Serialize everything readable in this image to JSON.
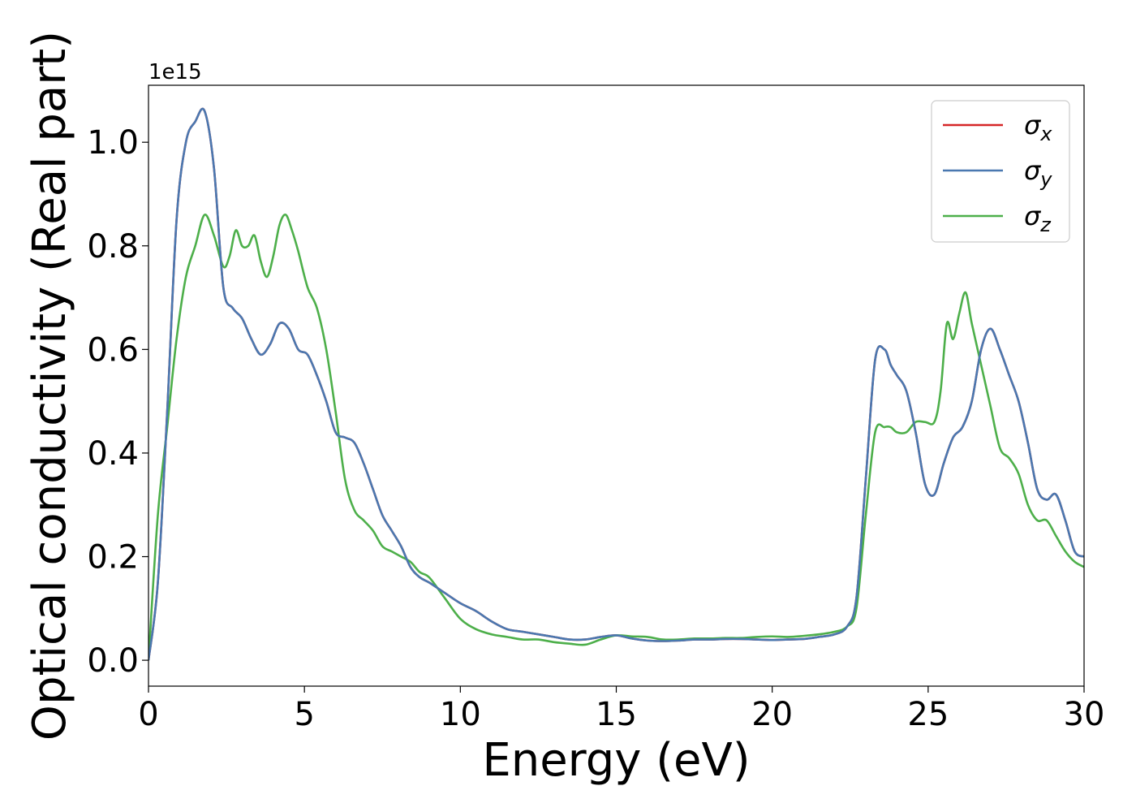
{
  "chart_data": {
    "type": "line",
    "title": "",
    "xlabel": "Energy (eV)",
    "ylabel": "Optical conductivity (Real part)",
    "y_offset_label": "1e15",
    "xlim": [
      0,
      30
    ],
    "ylim": [
      -0.05,
      1.11
    ],
    "y_scale": 1000000000000000.0,
    "x_ticks": [
      0,
      5,
      10,
      15,
      20,
      25,
      30
    ],
    "x_tick_labels": [
      "0",
      "5",
      "10",
      "15",
      "20",
      "25",
      "30"
    ],
    "y_ticks": [
      0.0,
      0.2,
      0.4,
      0.6,
      0.8,
      1.0
    ],
    "y_tick_labels": [
      "0.0",
      "0.2",
      "0.4",
      "0.6",
      "0.8",
      "1.0"
    ],
    "grid": false,
    "legend_position": "top-right",
    "series": [
      {
        "name": "σx",
        "symbol": "σ",
        "subscript": "x",
        "color": "#d62728",
        "x": [
          0,
          0.3,
          0.6,
          0.9,
          1.2,
          1.5,
          1.8,
          2.1,
          2.4,
          2.7,
          3.0,
          3.3,
          3.6,
          3.9,
          4.2,
          4.5,
          4.8,
          5.1,
          5.4,
          5.7,
          6.0,
          6.3,
          6.6,
          6.9,
          7.2,
          7.5,
          7.8,
          8.1,
          8.4,
          8.7,
          9.0,
          9.5,
          10.0,
          10.5,
          11.0,
          11.5,
          12.0,
          12.5,
          13.0,
          13.5,
          14.0,
          14.5,
          15.0,
          15.5,
          16.0,
          16.5,
          17.0,
          17.5,
          18.0,
          18.5,
          19.0,
          19.5,
          20.0,
          20.5,
          21.0,
          21.5,
          22.0,
          22.4,
          22.7,
          23.0,
          23.3,
          23.6,
          23.8,
          24.0,
          24.3,
          24.6,
          24.9,
          25.2,
          25.5,
          25.8,
          26.1,
          26.4,
          26.7,
          27.0,
          27.3,
          27.6,
          27.9,
          28.2,
          28.5,
          28.8,
          29.1,
          29.4,
          29.7,
          30.0
        ],
        "y": [
          0.0,
          0.15,
          0.48,
          0.85,
          1.0,
          1.04,
          1.06,
          0.95,
          0.72,
          0.68,
          0.66,
          0.62,
          0.59,
          0.61,
          0.65,
          0.64,
          0.6,
          0.59,
          0.55,
          0.5,
          0.44,
          0.43,
          0.42,
          0.38,
          0.33,
          0.28,
          0.25,
          0.22,
          0.18,
          0.16,
          0.15,
          0.13,
          0.11,
          0.095,
          0.075,
          0.06,
          0.055,
          0.05,
          0.045,
          0.04,
          0.04,
          0.045,
          0.048,
          0.042,
          0.038,
          0.037,
          0.038,
          0.04,
          0.04,
          0.041,
          0.041,
          0.04,
          0.039,
          0.04,
          0.041,
          0.045,
          0.05,
          0.065,
          0.12,
          0.35,
          0.58,
          0.6,
          0.57,
          0.55,
          0.52,
          0.44,
          0.34,
          0.32,
          0.38,
          0.43,
          0.45,
          0.5,
          0.6,
          0.64,
          0.6,
          0.55,
          0.5,
          0.42,
          0.33,
          0.31,
          0.32,
          0.27,
          0.21,
          0.2
        ]
      },
      {
        "name": "σy",
        "symbol": "σ",
        "subscript": "y",
        "color": "#4a78b0",
        "x": [
          0,
          0.3,
          0.6,
          0.9,
          1.2,
          1.5,
          1.8,
          2.1,
          2.4,
          2.7,
          3.0,
          3.3,
          3.6,
          3.9,
          4.2,
          4.5,
          4.8,
          5.1,
          5.4,
          5.7,
          6.0,
          6.3,
          6.6,
          6.9,
          7.2,
          7.5,
          7.8,
          8.1,
          8.4,
          8.7,
          9.0,
          9.5,
          10.0,
          10.5,
          11.0,
          11.5,
          12.0,
          12.5,
          13.0,
          13.5,
          14.0,
          14.5,
          15.0,
          15.5,
          16.0,
          16.5,
          17.0,
          17.5,
          18.0,
          18.5,
          19.0,
          19.5,
          20.0,
          20.5,
          21.0,
          21.5,
          22.0,
          22.4,
          22.7,
          23.0,
          23.3,
          23.6,
          23.8,
          24.0,
          24.3,
          24.6,
          24.9,
          25.2,
          25.5,
          25.8,
          26.1,
          26.4,
          26.7,
          27.0,
          27.3,
          27.6,
          27.9,
          28.2,
          28.5,
          28.8,
          29.1,
          29.4,
          29.7,
          30.0
        ],
        "y": [
          0.0,
          0.15,
          0.48,
          0.85,
          1.0,
          1.04,
          1.06,
          0.95,
          0.72,
          0.68,
          0.66,
          0.62,
          0.59,
          0.61,
          0.65,
          0.64,
          0.6,
          0.59,
          0.55,
          0.5,
          0.44,
          0.43,
          0.42,
          0.38,
          0.33,
          0.28,
          0.25,
          0.22,
          0.18,
          0.16,
          0.15,
          0.13,
          0.11,
          0.095,
          0.075,
          0.06,
          0.055,
          0.05,
          0.045,
          0.04,
          0.04,
          0.045,
          0.048,
          0.042,
          0.038,
          0.037,
          0.038,
          0.04,
          0.04,
          0.041,
          0.041,
          0.04,
          0.039,
          0.04,
          0.041,
          0.045,
          0.05,
          0.065,
          0.12,
          0.35,
          0.58,
          0.6,
          0.57,
          0.55,
          0.52,
          0.44,
          0.34,
          0.32,
          0.38,
          0.43,
          0.45,
          0.5,
          0.6,
          0.64,
          0.6,
          0.55,
          0.5,
          0.42,
          0.33,
          0.31,
          0.32,
          0.27,
          0.21,
          0.2
        ]
      },
      {
        "name": "σz",
        "symbol": "σ",
        "subscript": "z",
        "color": "#4daf4a",
        "x": [
          0,
          0.3,
          0.6,
          0.9,
          1.2,
          1.5,
          1.8,
          2.1,
          2.4,
          2.6,
          2.8,
          3.0,
          3.2,
          3.4,
          3.6,
          3.8,
          4.0,
          4.2,
          4.4,
          4.6,
          4.8,
          5.1,
          5.4,
          5.7,
          6.0,
          6.3,
          6.6,
          6.9,
          7.2,
          7.5,
          7.8,
          8.1,
          8.4,
          8.7,
          9.0,
          9.5,
          10.0,
          10.5,
          11.0,
          11.5,
          12.0,
          12.5,
          13.0,
          13.5,
          14.0,
          14.5,
          15.0,
          15.5,
          16.0,
          16.5,
          17.0,
          17.5,
          18.0,
          18.5,
          19.0,
          19.5,
          20.0,
          20.5,
          21.0,
          21.5,
          22.0,
          22.4,
          22.7,
          23.0,
          23.3,
          23.6,
          23.8,
          24.0,
          24.3,
          24.6,
          24.9,
          25.2,
          25.4,
          25.6,
          25.8,
          26.0,
          26.2,
          26.4,
          26.7,
          27.0,
          27.3,
          27.6,
          27.9,
          28.2,
          28.5,
          28.8,
          29.1,
          29.4,
          29.7,
          30.0
        ],
        "y": [
          0.0,
          0.28,
          0.45,
          0.62,
          0.74,
          0.8,
          0.86,
          0.82,
          0.76,
          0.78,
          0.83,
          0.8,
          0.8,
          0.82,
          0.77,
          0.74,
          0.78,
          0.84,
          0.86,
          0.83,
          0.79,
          0.72,
          0.68,
          0.6,
          0.48,
          0.35,
          0.29,
          0.27,
          0.25,
          0.22,
          0.21,
          0.2,
          0.19,
          0.17,
          0.16,
          0.12,
          0.08,
          0.06,
          0.05,
          0.045,
          0.04,
          0.04,
          0.035,
          0.032,
          0.03,
          0.04,
          0.048,
          0.046,
          0.045,
          0.04,
          0.04,
          0.042,
          0.042,
          0.043,
          0.043,
          0.045,
          0.046,
          0.045,
          0.047,
          0.05,
          0.055,
          0.065,
          0.1,
          0.28,
          0.44,
          0.45,
          0.45,
          0.44,
          0.44,
          0.46,
          0.46,
          0.46,
          0.52,
          0.65,
          0.62,
          0.67,
          0.71,
          0.65,
          0.57,
          0.49,
          0.41,
          0.39,
          0.36,
          0.3,
          0.27,
          0.27,
          0.24,
          0.21,
          0.19,
          0.18
        ]
      }
    ]
  }
}
